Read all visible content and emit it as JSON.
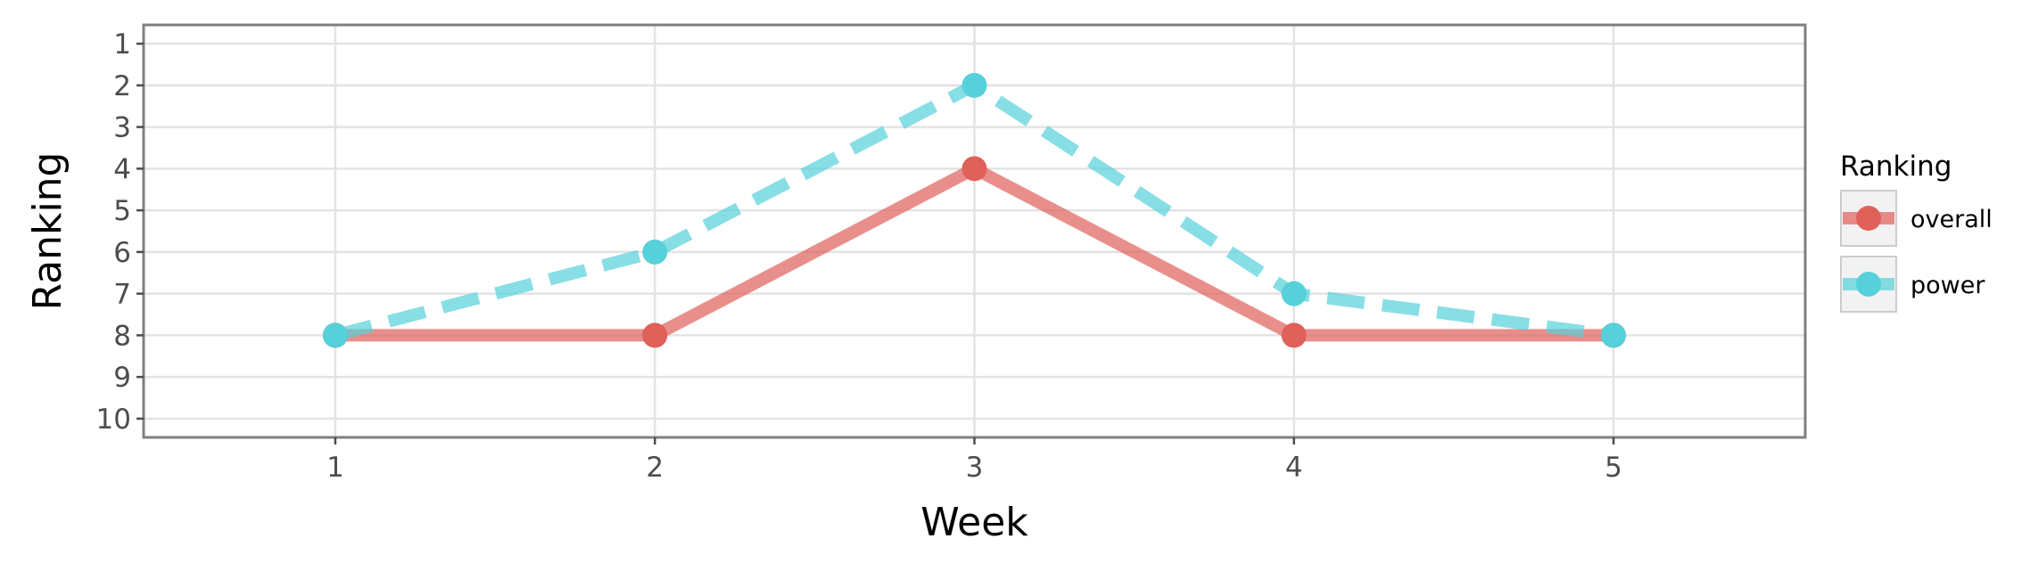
{
  "chart_data": {
    "type": "line",
    "title": "",
    "xlabel": "Week",
    "ylabel": "Ranking",
    "x": [
      1,
      2,
      3,
      4,
      5
    ],
    "xlim": [
      0.4,
      5.6
    ],
    "ylim": [
      10.45,
      0.55
    ],
    "y_inverted": true,
    "x_ticks": [
      "1",
      "2",
      "3",
      "4",
      "5"
    ],
    "y_ticks": [
      "1",
      "2",
      "3",
      "4",
      "5",
      "6",
      "7",
      "8",
      "9",
      "10"
    ],
    "grid": true,
    "legend": {
      "title": "Ranking",
      "position": "right"
    },
    "series": [
      {
        "name": "overall",
        "values": [
          8,
          8,
          4,
          8,
          8
        ],
        "color": "#e0605a",
        "line_style": "solid"
      },
      {
        "name": "power",
        "values": [
          8,
          6,
          2,
          7,
          8
        ],
        "color": "#56d0da",
        "line_style": "dashed"
      }
    ]
  }
}
